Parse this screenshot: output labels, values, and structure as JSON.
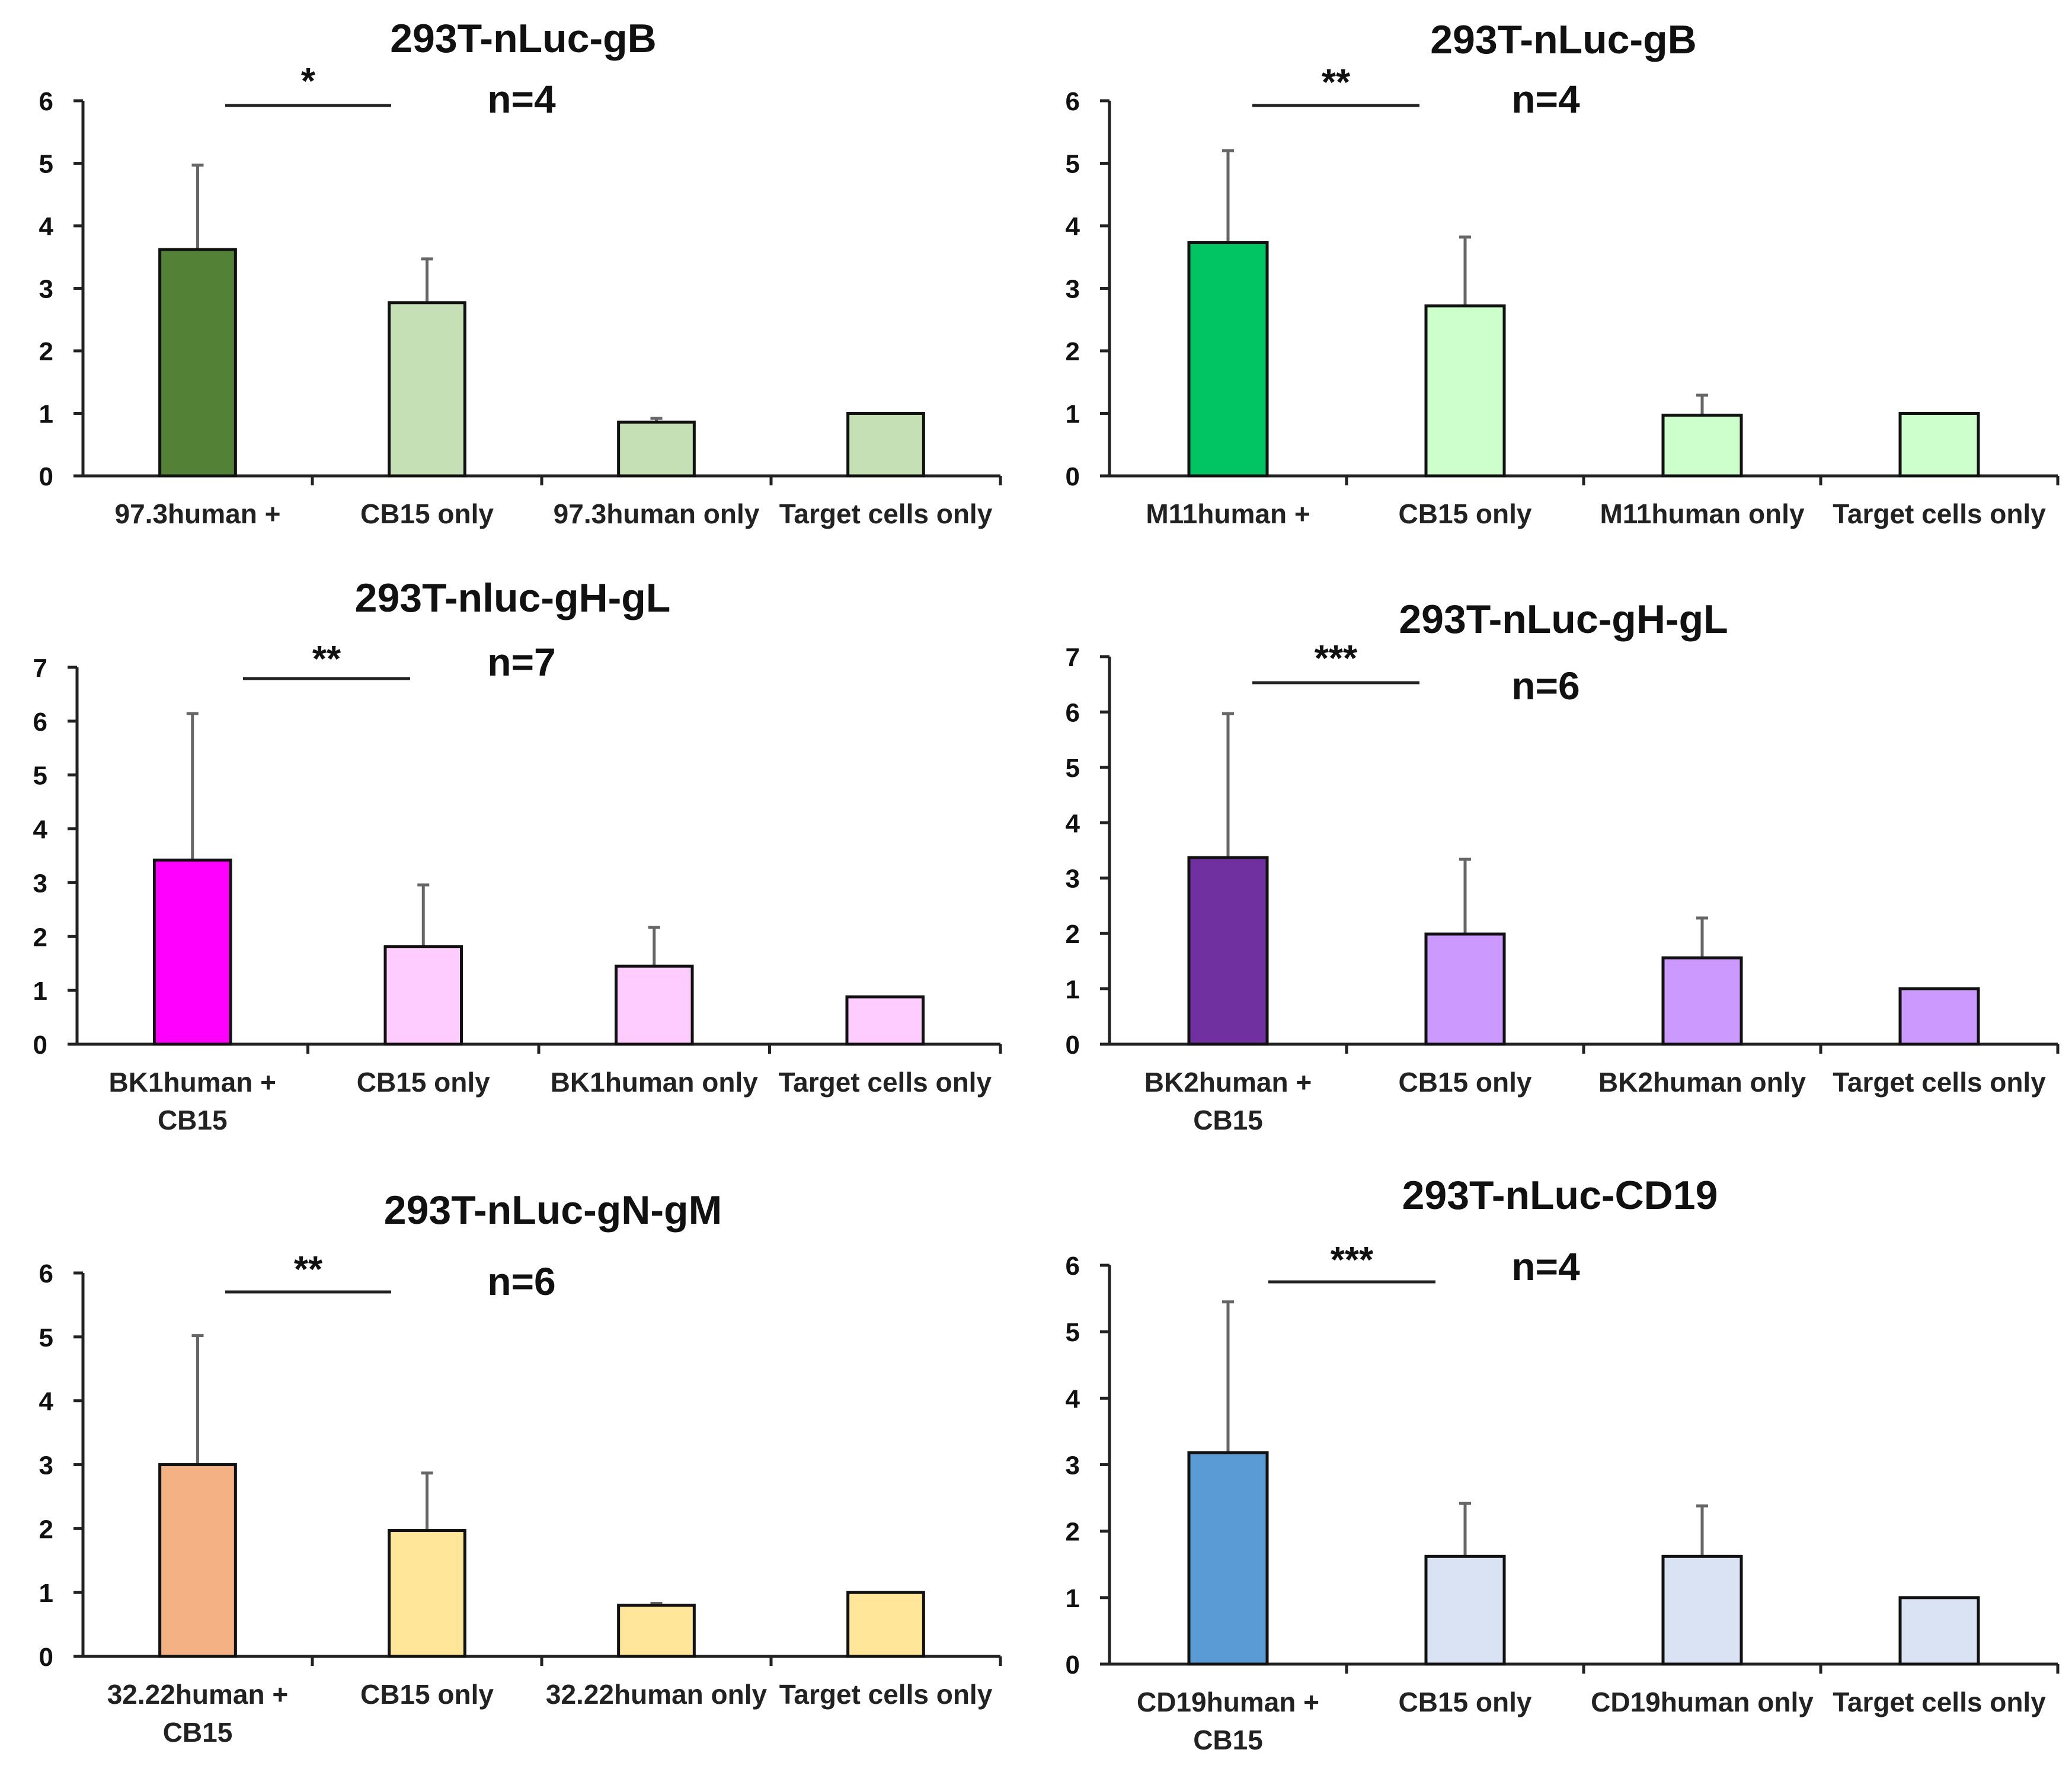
{
  "chart_data": [
    {
      "type": "bar",
      "title": "293T-nLuc-gB",
      "n_label": "n=4",
      "significance": "*",
      "categories": [
        [
          "97.3human +"
        ],
        [
          "CB15 only"
        ],
        [
          "97.3human only"
        ],
        [
          "Target cells only"
        ]
      ],
      "values": [
        3.62,
        2.77,
        0.86,
        1.0
      ],
      "errors": [
        1.35,
        0.7,
        0.06,
        0.0
      ],
      "colors": [
        "#538135",
        "#c5e0b4",
        "#c5e0b4",
        "#c5e0b4"
      ],
      "ylim": [
        0,
        6
      ],
      "yticks": [
        "0",
        "1",
        "2",
        "3",
        "4",
        "5",
        "6"
      ],
      "xlabel": "",
      "ylabel": ""
    },
    {
      "type": "bar",
      "title": "293T-nLuc-gB",
      "n_label": "n=4",
      "significance": "**",
      "categories": [
        [
          "M11human +"
        ],
        [
          "CB15 only"
        ],
        [
          "M11human only"
        ],
        [
          "Target cells only"
        ]
      ],
      "values": [
        3.73,
        2.72,
        0.97,
        1.0
      ],
      "errors": [
        1.47,
        1.1,
        0.32,
        0.0
      ],
      "colors": [
        "#00c562",
        "#ccffcc",
        "#ccffcc",
        "#ccffcc"
      ],
      "ylim": [
        0,
        6
      ],
      "yticks": [
        "0",
        "1",
        "2",
        "3",
        "4",
        "5",
        "6"
      ],
      "xlabel": "",
      "ylabel": ""
    },
    {
      "type": "bar",
      "title": "293T-nluc-gH-gL",
      "n_label": "n=7",
      "significance": "**",
      "categories": [
        [
          "BK1human +",
          "CB15"
        ],
        [
          "CB15 only"
        ],
        [
          "BK1human only"
        ],
        [
          "Target cells only"
        ]
      ],
      "values": [
        3.42,
        1.81,
        1.45,
        0.88
      ],
      "errors": [
        2.72,
        1.15,
        0.72,
        0.0
      ],
      "colors": [
        "#ff00ff",
        "#ffccff",
        "#ffccff",
        "#ffccff"
      ],
      "ylim": [
        0,
        7
      ],
      "yticks": [
        "0",
        "1",
        "2",
        "3",
        "4",
        "5",
        "6",
        "7"
      ],
      "xlabel": "",
      "ylabel": ""
    },
    {
      "type": "bar",
      "title": "293T-nLuc-gH-gL",
      "n_label": "n=6",
      "significance": "***",
      "categories": [
        [
          "BK2human +",
          "CB15"
        ],
        [
          "CB15 only"
        ],
        [
          "BK2human only"
        ],
        [
          "Target cells only"
        ]
      ],
      "values": [
        3.37,
        1.99,
        1.56,
        1.0
      ],
      "errors": [
        2.6,
        1.35,
        0.72,
        0.0
      ],
      "colors": [
        "#7030a0",
        "#cc99ff",
        "#cc99ff",
        "#cc99ff"
      ],
      "ylim": [
        0,
        7
      ],
      "yticks": [
        "0",
        "1",
        "2",
        "3",
        "4",
        "5",
        "6",
        "7"
      ],
      "xlabel": "",
      "ylabel": ""
    },
    {
      "type": "bar",
      "title": "293T-nLuc-gN-gM",
      "n_label": "n=6",
      "significance": "**",
      "categories": [
        [
          "32.22human +",
          "CB15"
        ],
        [
          "CB15 only"
        ],
        [
          "32.22human only"
        ],
        [
          "Target cells only"
        ]
      ],
      "values": [
        3.0,
        1.97,
        0.8,
        1.0
      ],
      "errors": [
        2.02,
        0.9,
        0.03,
        0.0
      ],
      "colors": [
        "#f4b183",
        "#ffe699",
        "#ffe699",
        "#ffe699"
      ],
      "ylim": [
        0,
        6
      ],
      "yticks": [
        "0",
        "1",
        "2",
        "3",
        "4",
        "5",
        "6"
      ],
      "xlabel": "",
      "ylabel": ""
    },
    {
      "type": "bar",
      "title": "293T-nLuc-CD19",
      "n_label": "n=4",
      "significance": "***",
      "categories": [
        [
          "CD19human +",
          "CB15"
        ],
        [
          "CB15 only"
        ],
        [
          "CD19human only"
        ],
        [
          "Target cells only"
        ]
      ],
      "values": [
        3.18,
        1.62,
        1.62,
        1.0
      ],
      "errors": [
        2.27,
        0.8,
        0.76,
        0.0
      ],
      "colors": [
        "#5b9bd5",
        "#dae3f3",
        "#dae3f3",
        "#dae3f3"
      ],
      "ylim": [
        0,
        6
      ],
      "yticks": [
        "0",
        "1",
        "2",
        "3",
        "4",
        "5",
        "6"
      ],
      "xlabel": "",
      "ylabel": ""
    }
  ]
}
